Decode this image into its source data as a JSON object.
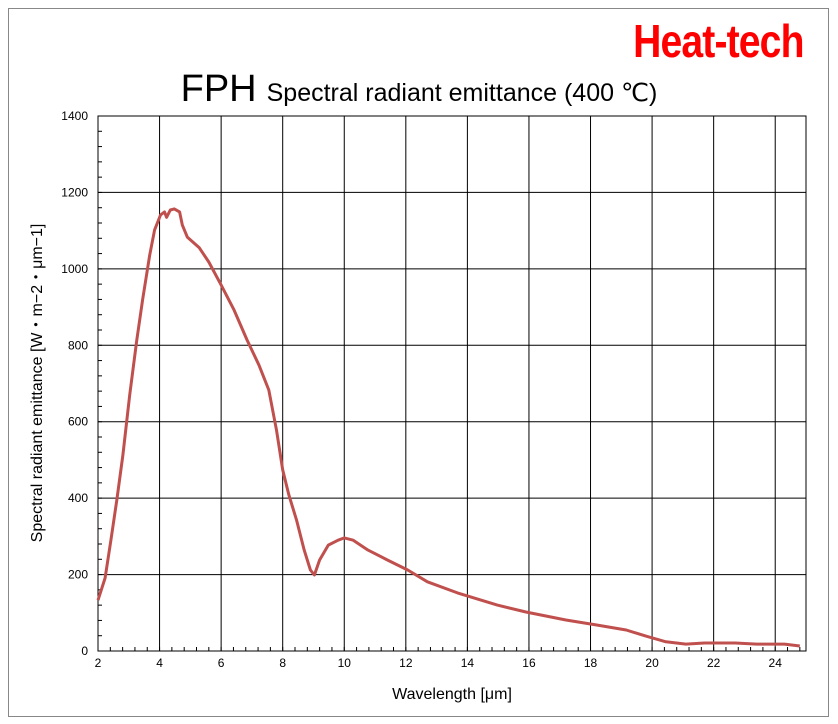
{
  "brand": "Heat-tech",
  "chart_data": {
    "type": "line",
    "title_model": "FPH",
    "title": "Spectral radiant emittance (400 ℃)",
    "xlabel": "Wavelength [μm]",
    "ylabel": "Spectral radiant emittance [W・m−2・μm−1]",
    "xlim": [
      2,
      25
    ],
    "ylim": [
      0,
      1400
    ],
    "xticks": [
      2,
      4,
      6,
      8,
      10,
      12,
      14,
      16,
      18,
      20,
      22,
      24
    ],
    "yticks": [
      0,
      200,
      400,
      600,
      800,
      1000,
      1200,
      1400
    ],
    "grid": true,
    "line_color": "#c0504d",
    "series": [
      {
        "x": [
          2.0,
          2.23,
          2.42,
          2.61,
          2.81,
          3.03,
          3.26,
          3.45,
          3.68,
          3.84,
          4.03,
          4.16,
          4.23,
          4.35,
          4.48,
          4.65,
          4.74,
          4.9,
          5.29,
          5.6,
          6.0,
          6.42,
          6.84,
          7.23,
          7.55,
          7.8,
          8.0,
          8.2,
          8.45,
          8.7,
          8.9,
          9.03,
          9.2,
          9.48,
          9.8,
          10.0,
          10.29,
          10.77,
          11.4,
          12.06,
          12.7,
          13.68,
          14.97,
          15.9,
          17.2,
          18.2,
          19.16,
          19.8,
          20.45,
          21.1,
          21.7,
          22.7,
          23.4,
          24.3,
          24.8
        ],
        "y": [
          133,
          191,
          290,
          395,
          513,
          670,
          814,
          919,
          1036,
          1102,
          1141,
          1149,
          1135,
          1154,
          1157,
          1149,
          1115,
          1083,
          1055,
          1018,
          958,
          892,
          814,
          748,
          683,
          578,
          474,
          408,
          343,
          264,
          212,
          199,
          238,
          277,
          290,
          296,
          290,
          264,
          238,
          212,
          181,
          152,
          120,
          102,
          81,
          68,
          55,
          39,
          24,
          18,
          21,
          21,
          18,
          18,
          13
        ]
      }
    ]
  }
}
